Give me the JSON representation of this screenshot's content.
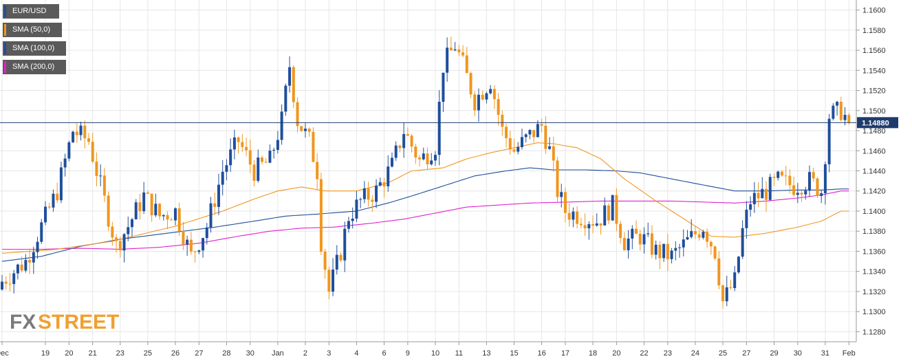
{
  "legend": [
    {
      "label": "EUR/USD",
      "color": "#1f4e9c",
      "width": 82
    },
    {
      "label": "SMA (50,0)",
      "color": "#f0961e",
      "width": 86
    },
    {
      "label": "SMA (100,0)",
      "color": "#1f4e9c",
      "width": 92
    },
    {
      "label": "SMA (200,0)",
      "color": "#e020d0",
      "width": 92
    }
  ],
  "logo": {
    "part1": "FX",
    "part2": "STREET"
  },
  "last_price_label": "1.14880",
  "colors": {
    "up": "#1f4e9c",
    "down": "#f0961e",
    "sma50": "#f0961e",
    "sma100": "#1f4e9c",
    "sma200": "#e020d0",
    "price_line": "#1f3b6e",
    "grid": "#e6e6e6",
    "tag_bg": "#1f3b6e"
  },
  "chart_data": {
    "type": "candlestick",
    "title": "",
    "xlabel": "",
    "ylabel": "",
    "ylim": [
      1.127,
      1.161
    ],
    "grid": true,
    "legend_position": "top-left",
    "y_ticks": [
      "1.1600",
      "1.1580",
      "1.1560",
      "1.1540",
      "1.1520",
      "1.1500",
      "1.1480",
      "1.1460",
      "1.1440",
      "1.1420",
      "1.1400",
      "1.1380",
      "1.1360",
      "1.1340",
      "1.1320",
      "1.1300",
      "1.1280"
    ],
    "x_labels": [
      {
        "label": "Dec",
        "i": 0
      },
      {
        "label": "19",
        "i": 11
      },
      {
        "label": "20",
        "i": 17
      },
      {
        "label": "21",
        "i": 23
      },
      {
        "label": "23",
        "i": 30
      },
      {
        "label": "25",
        "i": 37
      },
      {
        "label": "26",
        "i": 44
      },
      {
        "label": "27",
        "i": 50
      },
      {
        "label": "28",
        "i": 57
      },
      {
        "label": "30",
        "i": 63
      },
      {
        "label": "Jan",
        "i": 70
      },
      {
        "label": "2",
        "i": 77
      },
      {
        "label": "3",
        "i": 83
      },
      {
        "label": "4",
        "i": 90
      },
      {
        "label": "6",
        "i": 97
      },
      {
        "label": "9",
        "i": 103
      },
      {
        "label": "10",
        "i": 110
      },
      {
        "label": "11",
        "i": 116
      },
      {
        "label": "13",
        "i": 123
      },
      {
        "label": "15",
        "i": 130
      },
      {
        "label": "16",
        "i": 137
      },
      {
        "label": "17",
        "i": 143
      },
      {
        "label": "18",
        "i": 150
      },
      {
        "label": "20",
        "i": 156
      },
      {
        "label": "22",
        "i": 163
      },
      {
        "label": "23",
        "i": 169
      },
      {
        "label": "24",
        "i": 176
      },
      {
        "label": "25",
        "i": 183
      },
      {
        "label": "27",
        "i": 189
      },
      {
        "label": "29",
        "i": 196
      },
      {
        "label": "30",
        "i": 202
      },
      {
        "label": "31",
        "i": 209
      },
      {
        "label": "Feb",
        "i": 215
      }
    ],
    "last_price": 1.1488,
    "series_ohlc_keypoints": [
      [
        0,
        1.133
      ],
      [
        6,
        1.135
      ],
      [
        10,
        1.1385
      ],
      [
        14,
        1.142
      ],
      [
        18,
        1.148
      ],
      [
        22,
        1.147
      ],
      [
        26,
        1.141
      ],
      [
        29,
        1.1365
      ],
      [
        32,
        1.1385
      ],
      [
        36,
        1.1415
      ],
      [
        40,
        1.1395
      ],
      [
        44,
        1.14
      ],
      [
        48,
        1.1355
      ],
      [
        52,
        1.1385
      ],
      [
        56,
        1.144
      ],
      [
        60,
        1.147
      ],
      [
        64,
        1.144
      ],
      [
        68,
        1.145
      ],
      [
        71,
        1.149
      ],
      [
        73,
        1.1545
      ],
      [
        75,
        1.149
      ],
      [
        78,
        1.147
      ],
      [
        80,
        1.144
      ],
      [
        81,
        1.137
      ],
      [
        83,
        1.132
      ],
      [
        86,
        1.136
      ],
      [
        88,
        1.1395
      ],
      [
        91,
        1.141
      ],
      [
        95,
        1.142
      ],
      [
        99,
        1.1445
      ],
      [
        102,
        1.148
      ],
      [
        106,
        1.145
      ],
      [
        110,
        1.1465
      ],
      [
        112,
        1.1545
      ],
      [
        115,
        1.1565
      ],
      [
        117,
        1.1545
      ],
      [
        120,
        1.151
      ],
      [
        124,
        1.153
      ],
      [
        127,
        1.148
      ],
      [
        130,
        1.146
      ],
      [
        134,
        1.1475
      ],
      [
        137,
        1.1485
      ],
      [
        139,
        1.146
      ],
      [
        141,
        1.142
      ],
      [
        143,
        1.14
      ],
      [
        147,
        1.1395
      ],
      [
        151,
        1.139
      ],
      [
        155,
        1.1405
      ],
      [
        158,
        1.137
      ],
      [
        162,
        1.1375
      ],
      [
        166,
        1.136
      ],
      [
        170,
        1.1355
      ],
      [
        174,
        1.137
      ],
      [
        178,
        1.1385
      ],
      [
        181,
        1.136
      ],
      [
        183,
        1.131
      ],
      [
        186,
        1.133
      ],
      [
        188,
        1.138
      ],
      [
        190,
        1.141
      ],
      [
        194,
        1.142
      ],
      [
        197,
        1.143
      ],
      [
        201,
        1.1425
      ],
      [
        205,
        1.143
      ],
      [
        208,
        1.142
      ],
      [
        210,
        1.1495
      ],
      [
        213,
        1.15
      ],
      [
        215,
        1.1488
      ]
    ],
    "sma50_points": [
      [
        0,
        1.1358
      ],
      [
        14,
        1.1362
      ],
      [
        28,
        1.137
      ],
      [
        44,
        1.1385
      ],
      [
        56,
        1.14
      ],
      [
        64,
        1.1412
      ],
      [
        70,
        1.142
      ],
      [
        76,
        1.1424
      ],
      [
        82,
        1.142
      ],
      [
        90,
        1.142
      ],
      [
        98,
        1.1428
      ],
      [
        104,
        1.144
      ],
      [
        112,
        1.1443
      ],
      [
        118,
        1.1452
      ],
      [
        124,
        1.1458
      ],
      [
        130,
        1.1463
      ],
      [
        136,
        1.1468
      ],
      [
        140,
        1.1467
      ],
      [
        146,
        1.1463
      ],
      [
        152,
        1.1452
      ],
      [
        158,
        1.1432
      ],
      [
        166,
        1.141
      ],
      [
        172,
        1.1395
      ],
      [
        176,
        1.1385
      ],
      [
        180,
        1.1375
      ],
      [
        186,
        1.1374
      ],
      [
        194,
        1.1378
      ],
      [
        202,
        1.1384
      ],
      [
        208,
        1.139
      ],
      [
        213,
        1.14
      ]
    ],
    "sma100_points": [
      [
        0,
        1.135
      ],
      [
        10,
        1.1355
      ],
      [
        20,
        1.1365
      ],
      [
        30,
        1.1372
      ],
      [
        42,
        1.1378
      ],
      [
        54,
        1.1384
      ],
      [
        64,
        1.139
      ],
      [
        72,
        1.1395
      ],
      [
        80,
        1.1397
      ],
      [
        90,
        1.14
      ],
      [
        98,
        1.1408
      ],
      [
        104,
        1.1415
      ],
      [
        112,
        1.1425
      ],
      [
        120,
        1.1435
      ],
      [
        128,
        1.144
      ],
      [
        134,
        1.1443
      ],
      [
        140,
        1.1441
      ],
      [
        148,
        1.1441
      ],
      [
        156,
        1.144
      ],
      [
        162,
        1.1438
      ],
      [
        170,
        1.1432
      ],
      [
        178,
        1.1426
      ],
      [
        186,
        1.142
      ],
      [
        194,
        1.142
      ],
      [
        202,
        1.1421
      ],
      [
        208,
        1.1421
      ],
      [
        213,
        1.1422
      ]
    ],
    "sma200_points": [
      [
        0,
        1.1362
      ],
      [
        10,
        1.1362
      ],
      [
        20,
        1.1363
      ],
      [
        30,
        1.1362
      ],
      [
        40,
        1.1364
      ],
      [
        50,
        1.1368
      ],
      [
        60,
        1.1375
      ],
      [
        68,
        1.138
      ],
      [
        76,
        1.1383
      ],
      [
        84,
        1.1384
      ],
      [
        94,
        1.1388
      ],
      [
        102,
        1.1392
      ],
      [
        110,
        1.1398
      ],
      [
        118,
        1.1404
      ],
      [
        126,
        1.1406
      ],
      [
        134,
        1.1408
      ],
      [
        144,
        1.1409
      ],
      [
        152,
        1.141
      ],
      [
        160,
        1.141
      ],
      [
        170,
        1.141
      ],
      [
        178,
        1.1409
      ],
      [
        186,
        1.1408
      ],
      [
        194,
        1.141
      ],
      [
        202,
        1.1413
      ],
      [
        208,
        1.1416
      ],
      [
        213,
        1.142
      ]
    ]
  }
}
